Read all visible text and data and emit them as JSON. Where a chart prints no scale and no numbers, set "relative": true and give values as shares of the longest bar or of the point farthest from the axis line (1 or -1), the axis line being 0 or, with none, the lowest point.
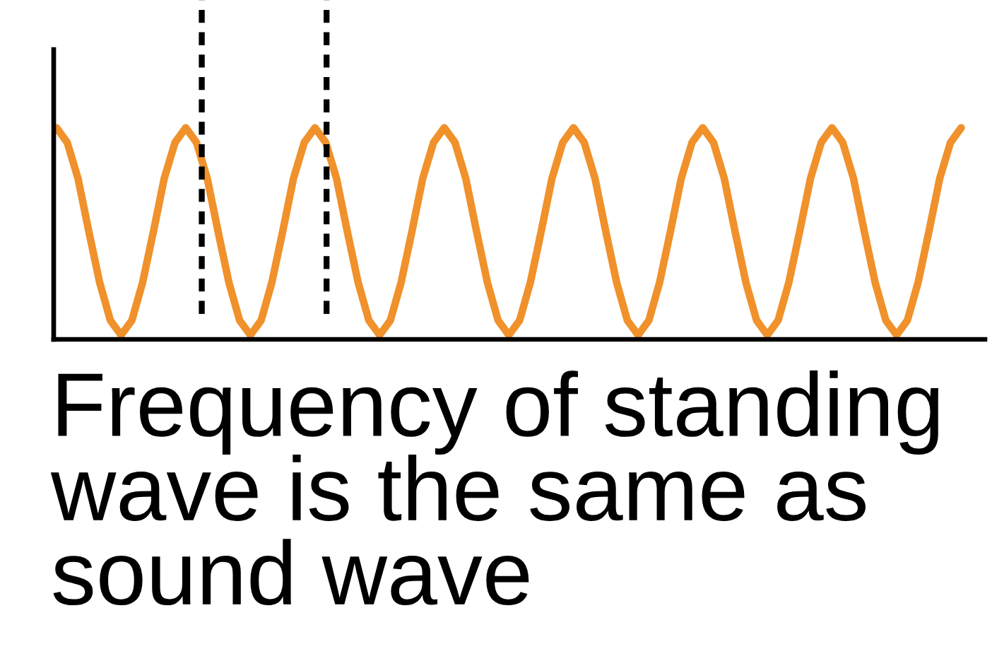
{
  "chart_data": {
    "type": "line",
    "relative": true,
    "legend": false,
    "marker": "none",
    "line_style": "solid",
    "categories": [
      null,
      null,
      null,
      null,
      null,
      null,
      null,
      null,
      null,
      null,
      null,
      null,
      null,
      null,
      null,
      null,
      null,
      null,
      null,
      null,
      null,
      null,
      null,
      null,
      null,
      null,
      null,
      null,
      null,
      null,
      null,
      null,
      null,
      null,
      null,
      null,
      null,
      null,
      null,
      null,
      null,
      null,
      null,
      null,
      null,
      null,
      null,
      null,
      null,
      null,
      null,
      null,
      null,
      null,
      null,
      null,
      null,
      null,
      null,
      null,
      null,
      null,
      null,
      null,
      null,
      null,
      null,
      null,
      null,
      null,
      null,
      null,
      null,
      null,
      null,
      null,
      null,
      null,
      null,
      null,
      null,
      null,
      null,
      null,
      null
    ],
    "series": [
      {
        "color": "#f0912b",
        "values": [
          1,
          0.93,
          0.76,
          0.51,
          0.27,
          0.09,
          0.02,
          0.09,
          0.27,
          0.51,
          0.76,
          0.93,
          1,
          0.93,
          0.76,
          0.51,
          0.27,
          0.09,
          0.02,
          0.09,
          0.27,
          0.51,
          0.76,
          0.93,
          1,
          0.93,
          0.76,
          0.51,
          0.27,
          0.09,
          0.02,
          0.09,
          0.27,
          0.51,
          0.76,
          0.93,
          1,
          0.93,
          0.76,
          0.51,
          0.27,
          0.09,
          0.02,
          0.09,
          0.27,
          0.51,
          0.76,
          0.93,
          1,
          0.93,
          0.76,
          0.51,
          0.27,
          0.09,
          0.02,
          0.09,
          0.27,
          0.51,
          0.76,
          0.93,
          1,
          0.93,
          0.76,
          0.51,
          0.27,
          0.09,
          0.02,
          0.09,
          0.27,
          0.51,
          0.76,
          0.93,
          1,
          0.93,
          0.76,
          0.51,
          0.27,
          0.09,
          0.02,
          0.09,
          0.27,
          0.51,
          0.76,
          0.93,
          1
        ]
      }
    ],
    "annotations": [
      "Frequency of standing wave is the same as sound wave"
    ]
  }
}
